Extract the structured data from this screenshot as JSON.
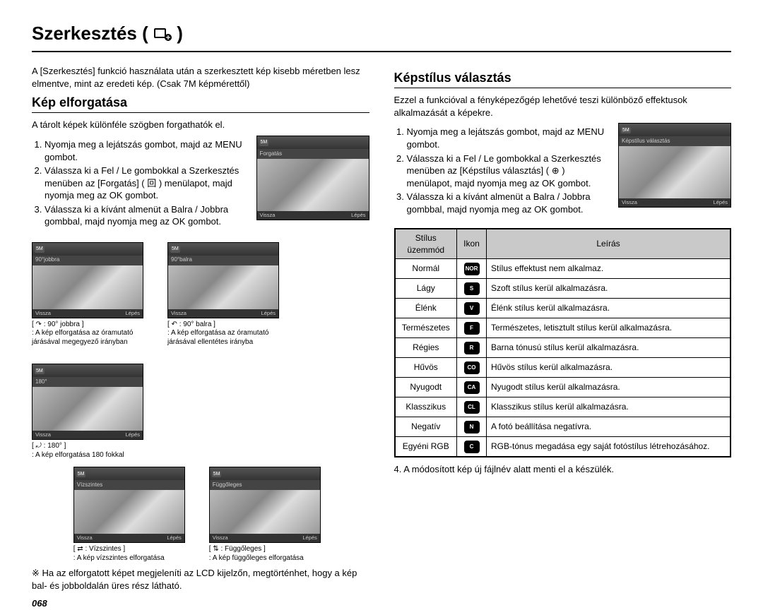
{
  "page": {
    "title_text": "Szerkesztés (",
    "title_close": ")",
    "page_number": "068"
  },
  "left": {
    "intro": "A [Szerkesztés] funkció használata után a szerkesztett kép kisebb méretben lesz elmentve, mint az eredeti kép. (Csak 7M képmérettől)",
    "section_title": "Kép elforgatása",
    "sub": "A tárolt képek különféle szögben forgathatók el.",
    "steps": [
      "Nyomja meg a lejátszás gombot, majd az MENU gombot.",
      "Válassza ki a Fel / Le gombokkal a Szerkesztés menüben az [Forgatás] ( 回 ) menülapot, majd nyomja meg az OK gombot.",
      "Válassza ki a kívánt almenüt a Balra / Jobbra gombbal, majd nyomja meg az OK gombot."
    ],
    "screen": {
      "topbar_tab": "5M",
      "menubar_label": "Forgatás",
      "back": "Vissza",
      "step": "Lépés"
    },
    "thumbs_row1": [
      {
        "menubar_label": "90°jobbra",
        "key": "↷ : 90° jobbra",
        "desc": ": A kép elforgatása az óramutató járásával megegyező irányban"
      },
      {
        "menubar_label": "90°balra",
        "key": "↶ : 90° balra",
        "desc": ": A kép elforgatása az óramutató járásával ellentétes irányba"
      },
      {
        "menubar_label": "180°",
        "key": "⤾ : 180°",
        "desc": ": A kép elforgatása 180 fokkal"
      }
    ],
    "thumbs_row2": [
      {
        "menubar_label": "Vízszintes",
        "key": "⇄ : Vízszintes",
        "desc": ": A kép vízszintes elforgatása"
      },
      {
        "menubar_label": "Függőleges",
        "key": "⇅ : Függőleges",
        "desc": ": A kép függőleges elforgatása"
      }
    ],
    "note": "※ Ha az elforgatott képet megjeleníti az LCD kijelzőn, megtörténhet, hogy a kép bal- és jobboldalán üres rész látható."
  },
  "right": {
    "section_title": "Képstílus választás",
    "sub": "Ezzel a funkcióval a fényképezőgép lehetővé teszi különböző effektusok alkalmazását a képekre.",
    "steps": [
      "Nyomja meg a lejátszás gombot, majd az MENU gombot.",
      "Válassza ki a Fel / Le gombokkal a Szerkesztés menüben az [Képstílus választás] ( ⊕ ) menülapot, majd nyomja meg az OK gombot.",
      "Válassza ki a kívánt almenüt a Balra / Jobbra gombbal, majd nyomja meg az OK gombot."
    ],
    "screen": {
      "topbar_tab": "5M",
      "menubar_label": "Képstílus választás",
      "back": "Vissza",
      "step": "Lépés"
    },
    "table": {
      "headers": [
        "Stílus üzemmód",
        "Ikon",
        "Leírás"
      ],
      "rows": [
        {
          "mode": "Normál",
          "icon": "NOR",
          "desc": "Stílus effektust nem alkalmaz."
        },
        {
          "mode": "Lágy",
          "icon": "S",
          "desc": "Szoft stílus kerül alkalmazásra."
        },
        {
          "mode": "Élénk",
          "icon": "V",
          "desc": "Élénk stílus kerül alkalmazásra."
        },
        {
          "mode": "Természetes",
          "icon": "F",
          "desc": "Természetes, letisztult stílus kerül alkalmazásra."
        },
        {
          "mode": "Régies",
          "icon": "R",
          "desc": "Barna tónusú stílus kerül alkalmazásra."
        },
        {
          "mode": "Hűvös",
          "icon": "CO",
          "desc": "Hűvös stílus kerül alkalmazásra."
        },
        {
          "mode": "Nyugodt",
          "icon": "CA",
          "desc": "Nyugodt stílus kerül alkalmazásra."
        },
        {
          "mode": "Klasszikus",
          "icon": "CL",
          "desc": "Klasszikus stílus kerül alkalmazásra."
        },
        {
          "mode": "Negatív",
          "icon": "N",
          "desc": "A fotó beállítása negatívra."
        },
        {
          "mode": "Egyéni RGB",
          "icon": "C",
          "desc": "RGB-tónus megadása egy saját fotóstílus létrehozásához."
        }
      ]
    },
    "after": "4. A módosított kép új fájlnév alatt menti el a készülék."
  }
}
